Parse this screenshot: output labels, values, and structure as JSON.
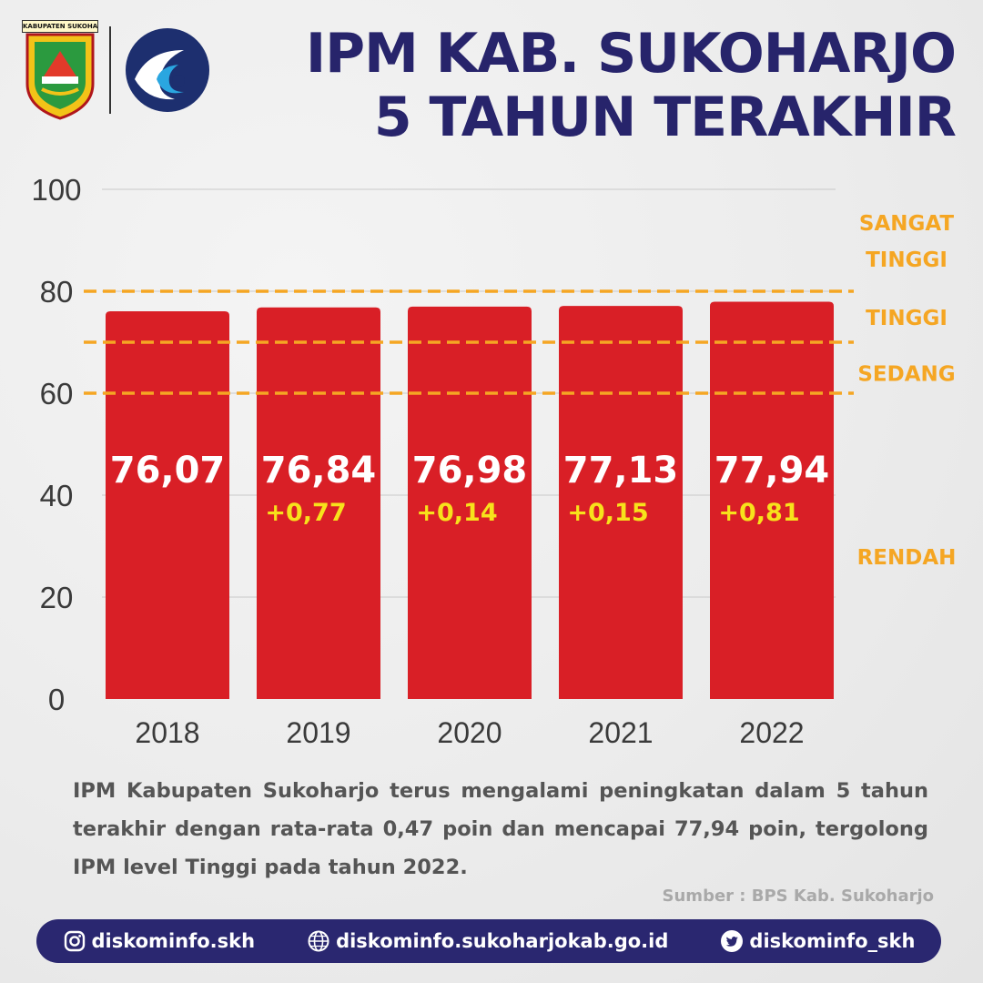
{
  "header": {
    "seal_label": "KABUPATEN SUKOHARJO",
    "title_line1": "IPM KAB. SUKOHARJO",
    "title_line2": "5 TAHUN TERAKHIR"
  },
  "chart_data": {
    "type": "bar",
    "categories": [
      "2018",
      "2019",
      "2020",
      "2021",
      "2022"
    ],
    "values": [
      76.07,
      76.84,
      76.98,
      77.13,
      77.94
    ],
    "value_labels": [
      "76,07",
      "76,84",
      "76,98",
      "77,13",
      "77,94"
    ],
    "change_labels": [
      "",
      "+0,77",
      "+0,14",
      "+0,15",
      "+0,81"
    ],
    "ylim": [
      0,
      100
    ],
    "yticks": [
      0,
      20,
      40,
      60,
      80,
      100
    ],
    "grid": true,
    "bar_color": "#d91f26",
    "thresholds": [
      {
        "value": 80,
        "color": "#f5a623"
      },
      {
        "value": 70,
        "color": "#f5a623"
      },
      {
        "value": 60,
        "color": "#f5a623"
      }
    ],
    "levels": [
      {
        "lines": [
          "SANGAT",
          "TINGGI"
        ],
        "value": 90
      },
      {
        "lines": [
          "TINGGI"
        ],
        "value": 75
      },
      {
        "lines": [
          "SEDANG"
        ],
        "value": 64
      },
      {
        "lines": [
          "RENDAH"
        ],
        "value": 28
      }
    ]
  },
  "description": "IPM Kabupaten Sukoharjo terus mengalami peningkatan dalam 5 tahun terakhir dengan rata-rata 0,47 poin dan mencapai 77,94 poin, tergolong IPM level Tinggi pada tahun 2022.",
  "source": "Sumber : BPS Kab. Sukoharjo",
  "footer": {
    "instagram": "diskominfo.skh",
    "website": "diskominfo.sukoharjokab.go.id",
    "twitter": "diskominfo_skh",
    "bg_color": "#2a2770"
  },
  "colors": {
    "title": "#27246b",
    "level_text": "#f5a623",
    "change_text": "#f7e21b"
  }
}
